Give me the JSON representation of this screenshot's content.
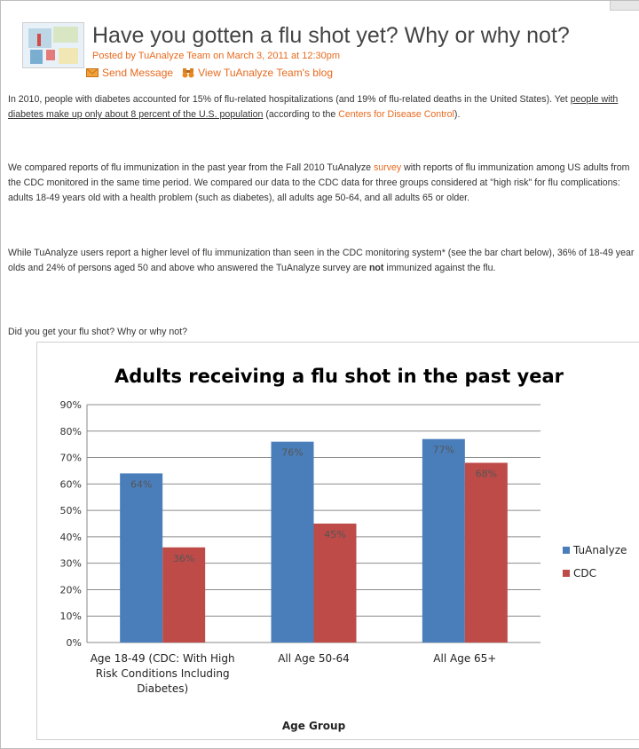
{
  "post": {
    "title": "Have you gotten a flu shot yet? Why or why not?",
    "byline": "Posted by TuAnalyze Team on March 3, 2011 at 12:30pm",
    "actions": {
      "send_message": "Send Message",
      "view_blog": "View TuAnalyze Team's blog"
    },
    "p1": {
      "t1": "In 2010, people with diabetes accounted for 15% of flu-related hospitalizations (and 19% of flu-related deaths in the United States). Yet ",
      "link1": "people with diabetes make up only about 8 percent of the U.S. population",
      "t2": " (according to the ",
      "link2": "Centers for Disease Control",
      "t3": ")."
    },
    "p2": {
      "t1": "We compared reports of flu immunization in the past year from the Fall 2010 TuAnalyze ",
      "link": "survey",
      "t2": " with reports of flu immunization among US adults from the CDC monitored in the same time period.  We compared our data to the CDC data for three groups considered at \"high risk\" for flu complications: adults 18-49 years old with a health problem (such as diabetes), all adults age 50-64, and all adults 65 or older."
    },
    "p3": {
      "t1": "While TuAnalyze users report a higher level of flu immunization than seen in the CDC monitoring system* (see the bar chart below), 36% of 18-49 year olds and 24% of persons aged 50 and above who answered the TuAnalyze survey are ",
      "bold": "not",
      "t2": " immunized against the flu."
    },
    "p4": "Did you get your flu shot? Why or why not?"
  },
  "icons": {
    "send": "envelope-icon",
    "blog": "binoculars-icon"
  },
  "chart_data": {
    "type": "bar",
    "title": "Adults receiving a flu shot in the past year",
    "xlabel": "Age Group",
    "ylabel": "",
    "ylim": [
      0,
      90
    ],
    "yticks": [
      0,
      10,
      20,
      30,
      40,
      50,
      60,
      70,
      80,
      90
    ],
    "ytick_format": "{v}%",
    "grid": true,
    "legend": "right",
    "categories": [
      [
        "Age 18-49 (CDC: With High",
        "Risk Conditions Including",
        "Diabetes)"
      ],
      [
        "All Age 50-64"
      ],
      [
        "All Age 65+"
      ]
    ],
    "series": [
      {
        "name": "TuAnalyze",
        "color": "#4a7ebb",
        "values": [
          64,
          76,
          77
        ],
        "labels": [
          "64%",
          "76%",
          "77%"
        ]
      },
      {
        "name": "CDC",
        "color": "#be4b48",
        "values": [
          36,
          45,
          68
        ],
        "labels": [
          "36%",
          "45%",
          "68%"
        ]
      }
    ]
  }
}
